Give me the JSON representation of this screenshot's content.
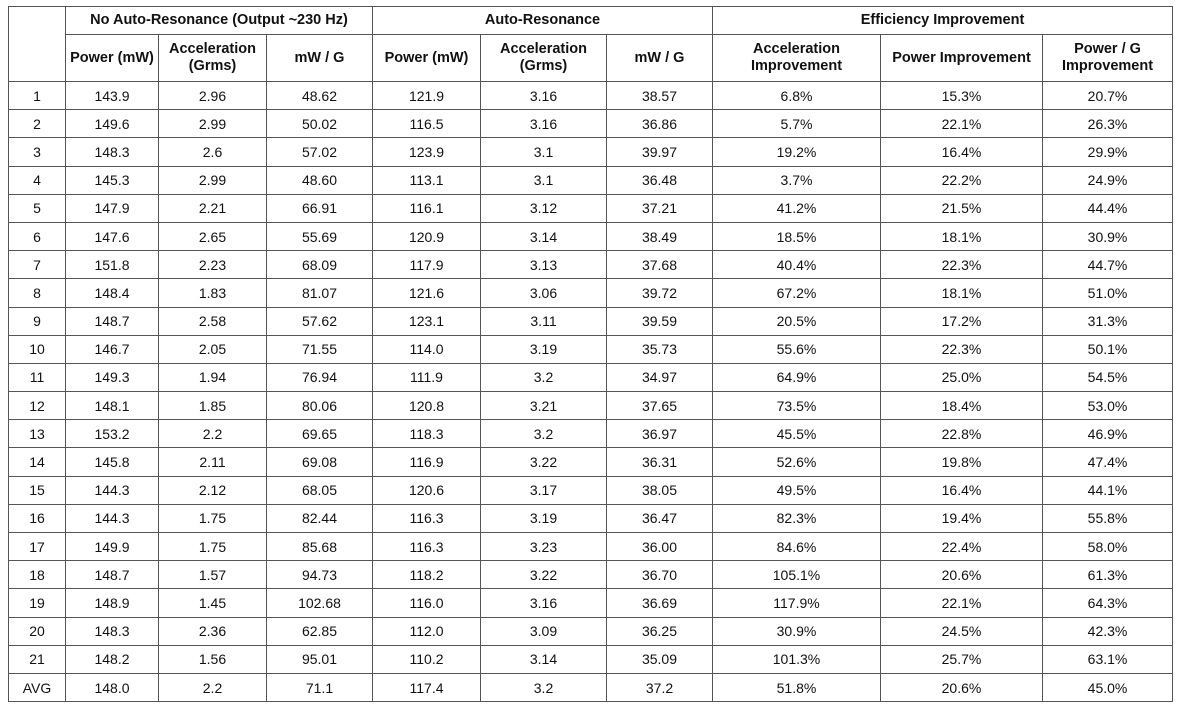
{
  "table": {
    "groups": [
      "No Auto-Resonance (Output ~230 Hz)",
      "Auto-Resonance",
      "Efficiency Improvement"
    ],
    "columns": [
      "Power (mW)",
      "Acceleration (Grms)",
      "mW / G",
      "Power (mW)",
      "Acceleration (Grms)",
      "mW / G",
      "Acceleration Improvement",
      "Power Improvement",
      "Power / G Improvement"
    ],
    "rows": [
      [
        "1",
        "143.9",
        "2.96",
        "48.62",
        "121.9",
        "3.16",
        "38.57",
        "6.8%",
        "15.3%",
        "20.7%"
      ],
      [
        "2",
        "149.6",
        "2.99",
        "50.02",
        "116.5",
        "3.16",
        "36.86",
        "5.7%",
        "22.1%",
        "26.3%"
      ],
      [
        "3",
        "148.3",
        "2.6",
        "57.02",
        "123.9",
        "3.1",
        "39.97",
        "19.2%",
        "16.4%",
        "29.9%"
      ],
      [
        "4",
        "145.3",
        "2.99",
        "48.60",
        "113.1",
        "3.1",
        "36.48",
        "3.7%",
        "22.2%",
        "24.9%"
      ],
      [
        "5",
        "147.9",
        "2.21",
        "66.91",
        "116.1",
        "3.12",
        "37.21",
        "41.2%",
        "21.5%",
        "44.4%"
      ],
      [
        "6",
        "147.6",
        "2.65",
        "55.69",
        "120.9",
        "3.14",
        "38.49",
        "18.5%",
        "18.1%",
        "30.9%"
      ],
      [
        "7",
        "151.8",
        "2.23",
        "68.09",
        "117.9",
        "3.13",
        "37.68",
        "40.4%",
        "22.3%",
        "44.7%"
      ],
      [
        "8",
        "148.4",
        "1.83",
        "81.07",
        "121.6",
        "3.06",
        "39.72",
        "67.2%",
        "18.1%",
        "51.0%"
      ],
      [
        "9",
        "148.7",
        "2.58",
        "57.62",
        "123.1",
        "3.11",
        "39.59",
        "20.5%",
        "17.2%",
        "31.3%"
      ],
      [
        "10",
        "146.7",
        "2.05",
        "71.55",
        "114.0",
        "3.19",
        "35.73",
        "55.6%",
        "22.3%",
        "50.1%"
      ],
      [
        "11",
        "149.3",
        "1.94",
        "76.94",
        "111.9",
        "3.2",
        "34.97",
        "64.9%",
        "25.0%",
        "54.5%"
      ],
      [
        "12",
        "148.1",
        "1.85",
        "80.06",
        "120.8",
        "3.21",
        "37.65",
        "73.5%",
        "18.4%",
        "53.0%"
      ],
      [
        "13",
        "153.2",
        "2.2",
        "69.65",
        "118.3",
        "3.2",
        "36.97",
        "45.5%",
        "22.8%",
        "46.9%"
      ],
      [
        "14",
        "145.8",
        "2.11",
        "69.08",
        "116.9",
        "3.22",
        "36.31",
        "52.6%",
        "19.8%",
        "47.4%"
      ],
      [
        "15",
        "144.3",
        "2.12",
        "68.05",
        "120.6",
        "3.17",
        "38.05",
        "49.5%",
        "16.4%",
        "44.1%"
      ],
      [
        "16",
        "144.3",
        "1.75",
        "82.44",
        "116.3",
        "3.19",
        "36.47",
        "82.3%",
        "19.4%",
        "55.8%"
      ],
      [
        "17",
        "149.9",
        "1.75",
        "85.68",
        "116.3",
        "3.23",
        "36.00",
        "84.6%",
        "22.4%",
        "58.0%"
      ],
      [
        "18",
        "148.7",
        "1.57",
        "94.73",
        "118.2",
        "3.22",
        "36.70",
        "105.1%",
        "20.6%",
        "61.3%"
      ],
      [
        "19",
        "148.9",
        "1.45",
        "102.68",
        "116.0",
        "3.16",
        "36.69",
        "117.9%",
        "22.1%",
        "64.3%"
      ],
      [
        "20",
        "148.3",
        "2.36",
        "62.85",
        "112.0",
        "3.09",
        "36.25",
        "30.9%",
        "24.5%",
        "42.3%"
      ],
      [
        "21",
        "148.2",
        "1.56",
        "95.01",
        "110.2",
        "3.14",
        "35.09",
        "101.3%",
        "25.7%",
        "63.1%"
      ],
      [
        "AVG",
        "148.0",
        "2.2",
        "71.1",
        "117.4",
        "3.2",
        "37.2",
        "51.8%",
        "20.6%",
        "45.0%"
      ]
    ]
  }
}
